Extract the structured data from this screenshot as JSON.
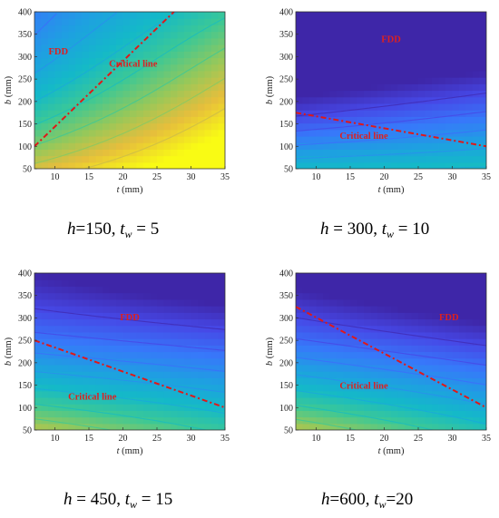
{
  "chart_data": [
    {
      "type": "heatmap",
      "xlabel": "t (mm)",
      "ylabel": "b (mm)",
      "xlim": [
        7,
        35
      ],
      "ylim": [
        50,
        400
      ],
      "xticks": [
        10,
        15,
        20,
        25,
        30,
        35
      ],
      "yticks": [
        50,
        100,
        150,
        200,
        250,
        300,
        350,
        400
      ],
      "grid": false,
      "contours": true,
      "annotations": [
        {
          "text": "FDD",
          "x": 10.5,
          "y": 305
        },
        {
          "text": "Critical line",
          "x": 21.5,
          "y": 278
        }
      ],
      "critical_line": {
        "x": [
          7,
          27.5
        ],
        "y": [
          100,
          400
        ]
      },
      "colormap_field": {
        "a": 0.32,
        "b": -0.22,
        "c": 0.5
      },
      "caption": {
        "h_label": "h",
        "h_value": "=150",
        "sep": ",",
        "tw_label": "t",
        "tw_sub": "w",
        "tw_value": " = 5"
      }
    },
    {
      "type": "heatmap",
      "xlabel": "t (mm)",
      "ylabel": "b (mm)",
      "xlim": [
        7,
        35
      ],
      "ylim": [
        50,
        400
      ],
      "xticks": [
        10,
        15,
        20,
        25,
        30,
        35
      ],
      "yticks": [
        50,
        100,
        150,
        200,
        250,
        300,
        350,
        400
      ],
      "grid": false,
      "contours": true,
      "annotations": [
        {
          "text": "FDD",
          "x": 21,
          "y": 332
        },
        {
          "text": "Critical line",
          "x": 17,
          "y": 117
        }
      ],
      "critical_line": {
        "x": [
          7,
          35
        ],
        "y": [
          175,
          100
        ]
      },
      "colormap_field": {
        "a": 0.08,
        "b": -0.55,
        "c": 0.15
      },
      "caption": {
        "h_label": "h",
        "h_value": " = 300",
        "sep": ",",
        "tw_label": "t",
        "tw_sub": "w",
        "tw_value": " = 10"
      }
    },
    {
      "type": "heatmap",
      "xlabel": "t (mm)",
      "ylabel": "b (mm)",
      "xlim": [
        7,
        35
      ],
      "ylim": [
        50,
        400
      ],
      "xticks": [
        10,
        15,
        20,
        25,
        30,
        35
      ],
      "yticks": [
        50,
        100,
        150,
        200,
        250,
        300,
        350,
        400
      ],
      "grid": false,
      "contours": true,
      "annotations": [
        {
          "text": "FDD",
          "x": 21,
          "y": 295
        },
        {
          "text": "Critical line",
          "x": 15.5,
          "y": 118
        }
      ],
      "critical_line": {
        "x": [
          7,
          35
        ],
        "y": [
          250,
          100
        ]
      },
      "colormap_field": {
        "a": -0.15,
        "b": -0.45,
        "c": 0.45
      },
      "caption": {
        "h_label": "h",
        "h_value": " = 450",
        "sep": ",",
        "tw_label": "t",
        "tw_sub": "w",
        "tw_value": " = 15"
      }
    },
    {
      "type": "heatmap",
      "xlabel": "t (mm)",
      "ylabel": "b (mm)",
      "xlim": [
        7,
        35
      ],
      "ylim": [
        50,
        400
      ],
      "xticks": [
        10,
        15,
        20,
        25,
        30,
        35
      ],
      "yticks": [
        50,
        100,
        150,
        200,
        250,
        300,
        350,
        400
      ],
      "grid": false,
      "contours": true,
      "annotations": [
        {
          "text": "FDD",
          "x": 29.5,
          "y": 295
        },
        {
          "text": "Critical line",
          "x": 17,
          "y": 142
        }
      ],
      "critical_line": {
        "x": [
          7,
          35
        ],
        "y": [
          325,
          100
        ]
      },
      "colormap_field": {
        "a": -0.2,
        "b": -0.5,
        "c": 0.45
      },
      "caption": {
        "h_label": "h",
        "h_value": "=600",
        "sep": ",",
        "tw_label": "t",
        "tw_sub": "w",
        "tw_value": "=20"
      }
    }
  ]
}
